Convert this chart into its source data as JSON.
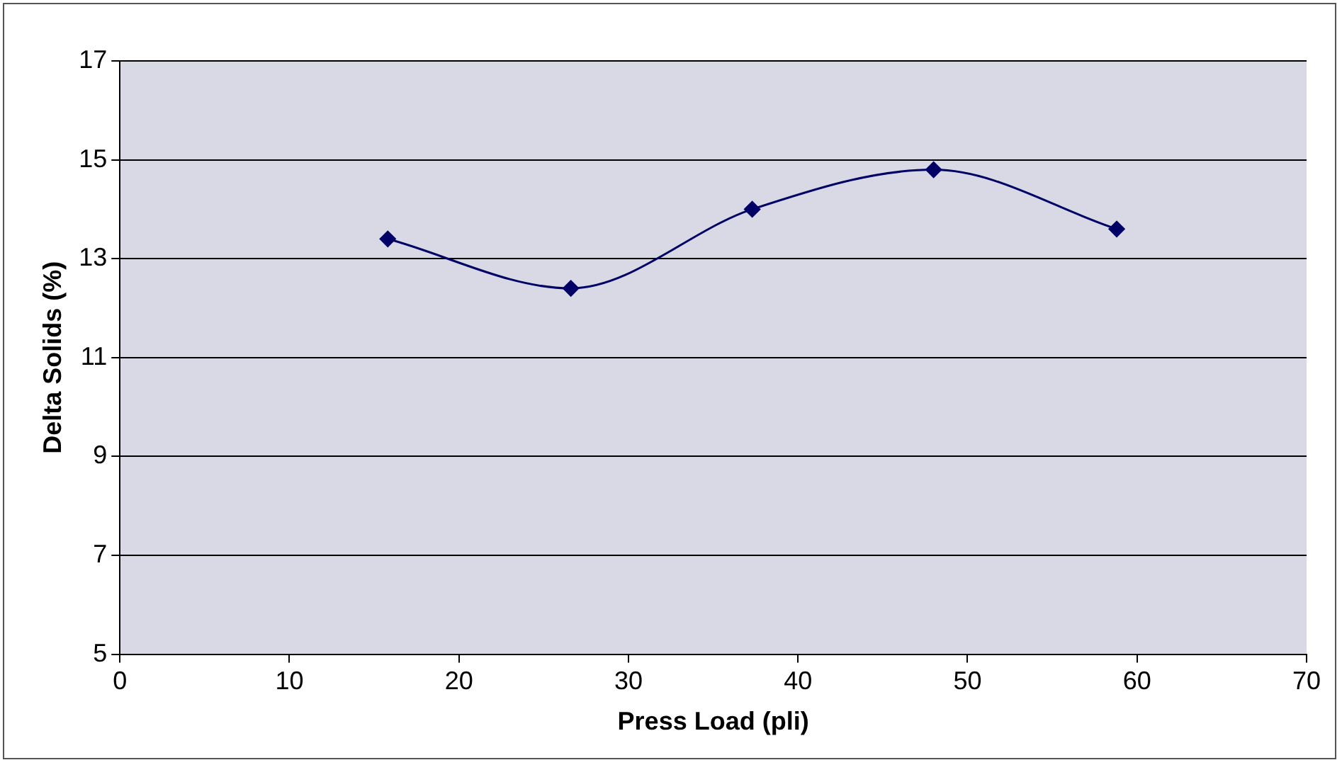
{
  "chart_data": {
    "type": "line",
    "xlabel": "Press Load (pli)",
    "ylabel": "Delta Solids (%)",
    "x": [
      15.8,
      26.6,
      37.3,
      48.0,
      58.8
    ],
    "series": [
      {
        "color": "#000066",
        "values": [
          13.4,
          12.4,
          14.0,
          14.8,
          13.6
        ]
      }
    ],
    "xlim": [
      0,
      70
    ],
    "xticks": [
      0,
      10,
      20,
      30,
      40,
      50,
      60,
      70
    ],
    "ylim": [
      5,
      17
    ],
    "yticks": [
      5,
      7,
      9,
      11,
      13,
      15,
      17
    ],
    "grid": "y",
    "legend": false,
    "marker": "diamond",
    "line_style": "solid"
  }
}
